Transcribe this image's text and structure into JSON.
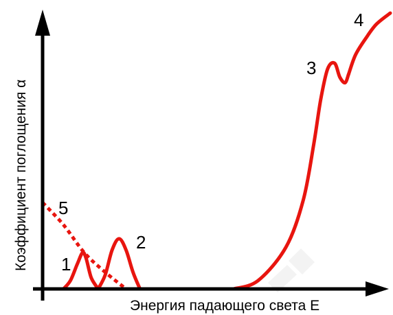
{
  "chart_data": {
    "type": "line",
    "title": "",
    "xlabel": "Энергия падающего света E",
    "ylabel": "Коэффициент поглощения α",
    "xlim": [
      0,
      1
    ],
    "ylim": [
      0,
      1
    ],
    "grid": false,
    "legend": "none",
    "ticks": "none",
    "colors": {
      "curve": "#e8150f",
      "axis": "#000000",
      "text": "#000000"
    },
    "series": [
      {
        "label_number": "1",
        "style": "solid",
        "points": [
          [
            0.06,
            0.0
          ],
          [
            0.08,
            0.03
          ],
          [
            0.1,
            0.09
          ],
          [
            0.115,
            0.13
          ],
          [
            0.125,
            0.11
          ],
          [
            0.14,
            0.04
          ],
          [
            0.16,
            0.0
          ]
        ]
      },
      {
        "label_number": "2",
        "style": "solid",
        "points": [
          [
            0.16,
            0.0
          ],
          [
            0.18,
            0.05
          ],
          [
            0.2,
            0.14
          ],
          [
            0.22,
            0.18
          ],
          [
            0.24,
            0.14
          ],
          [
            0.26,
            0.06
          ],
          [
            0.28,
            0.0
          ]
        ]
      },
      {
        "label_number": "5",
        "style": "dotted",
        "points": [
          [
            0.0,
            0.31
          ],
          [
            0.06,
            0.23
          ],
          [
            0.12,
            0.13
          ],
          [
            0.18,
            0.06
          ],
          [
            0.24,
            0.0
          ]
        ]
      },
      {
        "label_number": "",
        "style": "solid",
        "points": [
          [
            0.28,
            0.0
          ],
          [
            0.55,
            0.0
          ]
        ]
      },
      {
        "label_number": "3",
        "style": "solid",
        "points": [
          [
            0.55,
            0.0
          ],
          [
            0.62,
            0.03
          ],
          [
            0.7,
            0.15
          ],
          [
            0.75,
            0.32
          ],
          [
            0.78,
            0.52
          ],
          [
            0.8,
            0.68
          ],
          [
            0.82,
            0.79
          ],
          [
            0.84,
            0.81
          ],
          [
            0.855,
            0.76
          ],
          [
            0.87,
            0.74
          ],
          [
            0.88,
            0.77
          ]
        ]
      },
      {
        "label_number": "4",
        "style": "solid",
        "points": [
          [
            0.88,
            0.77
          ],
          [
            0.9,
            0.84
          ],
          [
            0.93,
            0.9
          ],
          [
            0.96,
            0.95
          ],
          [
            1.0,
            0.99
          ]
        ]
      }
    ],
    "annotations": [
      "1",
      "2",
      "3",
      "4",
      "5"
    ]
  }
}
